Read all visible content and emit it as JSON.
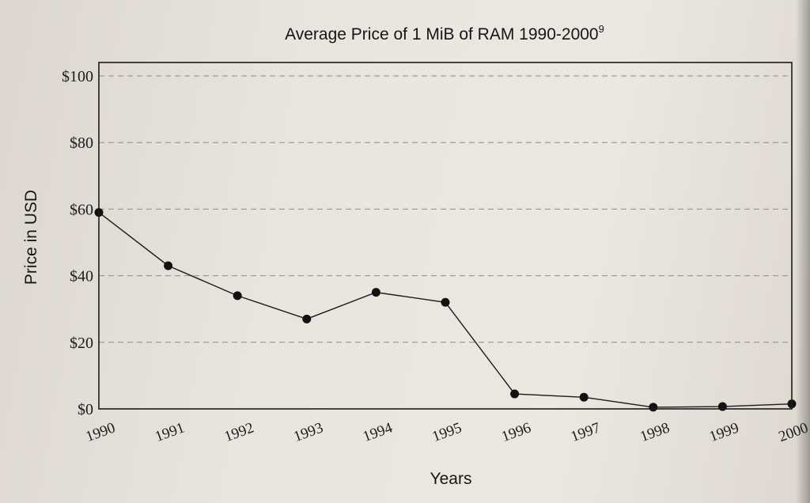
{
  "chart_data": {
    "type": "line",
    "title": "Average Price of 1 MiB of RAM 1990-2000",
    "title_superscript": "9",
    "xlabel": "Years",
    "ylabel": "Price in USD",
    "categories": [
      "1990",
      "1991",
      "1992",
      "1993",
      "1994",
      "1995",
      "1996",
      "1997",
      "1998",
      "1999",
      "2000"
    ],
    "series": [
      {
        "values": [
          59,
          43,
          34,
          27,
          35,
          32,
          4.5,
          3.5,
          0.5,
          0.7,
          1.5
        ]
      }
    ],
    "ylim": [
      0,
      100
    ],
    "yticks": [
      0,
      20,
      40,
      60,
      80,
      100
    ],
    "ytick_labels": [
      "$0",
      "$20",
      "$40",
      "$60",
      "$80",
      "$100"
    ],
    "grid": true,
    "marker": "circle"
  }
}
